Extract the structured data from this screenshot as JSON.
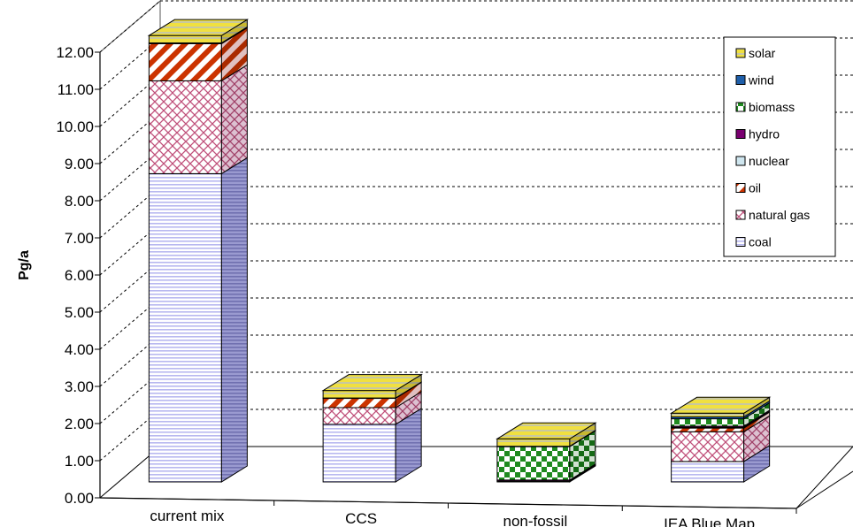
{
  "chart_data": {
    "type": "bar",
    "stacked": true,
    "three_d": true,
    "title": "",
    "xlabel": "",
    "ylabel": "Pg/a",
    "ylim": [
      0,
      12
    ],
    "yticks": [
      "0.00",
      "1.00",
      "2.00",
      "3.00",
      "4.00",
      "5.00",
      "6.00",
      "7.00",
      "8.00",
      "9.00",
      "10.00",
      "11.00",
      "12.00"
    ],
    "grid": "horizontal dashed",
    "legend_position": "top-right",
    "categories": [
      "current mix",
      "CCS",
      "non-fossil",
      "IEA Blue Map"
    ],
    "series": [
      {
        "name": "coal",
        "color": "#b8b8f0",
        "pattern": "horizontal-lines",
        "values": [
          8.3,
          1.55,
          0,
          0.55
        ]
      },
      {
        "name": "natural gas",
        "color": "#c0507a",
        "pattern": "crosshatch",
        "values": [
          2.5,
          0.45,
          0,
          0.8
        ]
      },
      {
        "name": "oil",
        "color": "#cc3300",
        "pattern": "diagonal-stripes",
        "values": [
          1.0,
          0.25,
          0,
          0.1
        ]
      },
      {
        "name": "nuclear",
        "color": "#cfe6ef",
        "pattern": "solid",
        "values": [
          0.0,
          0.0,
          0.02,
          0.02
        ]
      },
      {
        "name": "hydro",
        "color": "#7a0070",
        "pattern": "solid",
        "values": [
          0.02,
          0.01,
          0.03,
          0.03
        ]
      },
      {
        "name": "biomass",
        "color": "#1f8a1f",
        "pattern": "checker",
        "values": [
          0.0,
          0.0,
          0.9,
          0.2
        ]
      },
      {
        "name": "wind",
        "color": "#1f5faa",
        "pattern": "solid",
        "values": [
          0.0,
          0.0,
          0.01,
          0.05
        ]
      },
      {
        "name": "solar",
        "color": "#f0e040",
        "pattern": "horizontal-stripes",
        "values": [
          0.2,
          0.2,
          0.2,
          0.1
        ]
      }
    ],
    "legend_order": [
      "solar",
      "wind",
      "biomass",
      "hydro",
      "nuclear",
      "oil",
      "natural gas",
      "coal"
    ]
  }
}
